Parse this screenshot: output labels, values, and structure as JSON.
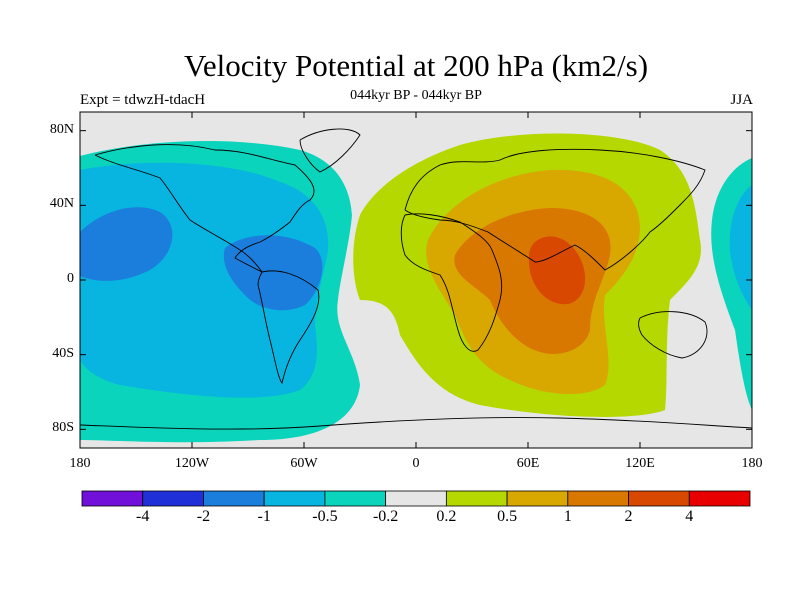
{
  "header": {
    "title": "Velocity Potential at 200 hPa (km2/s)",
    "experiment": "Expt = tdwzH-tdacH",
    "period": "044kyr BP - 044kyr BP",
    "season": "JJA"
  },
  "axes": {
    "lat_labels": [
      {
        "text": "80N",
        "value": 80
      },
      {
        "text": "40N",
        "value": 40
      },
      {
        "text": "0",
        "value": 0
      },
      {
        "text": "40S",
        "value": -40
      },
      {
        "text": "80S",
        "value": -80
      }
    ],
    "lon_labels": [
      {
        "text": "180",
        "value": -180
      },
      {
        "text": "120W",
        "value": -120
      },
      {
        "text": "60W",
        "value": -60
      },
      {
        "text": "0",
        "value": 0
      },
      {
        "text": "60E",
        "value": 60
      },
      {
        "text": "120E",
        "value": 120
      },
      {
        "text": "180",
        "value": 180
      }
    ]
  },
  "colorbar": {
    "colors": [
      "#7010d8",
      "#2030d8",
      "#1c7edc",
      "#08b4e0",
      "#0ad4bc",
      "#e6e6e6",
      "#b4d800",
      "#d8a800",
      "#d87800",
      "#d84800",
      "#e80000"
    ],
    "labels": [
      "-4",
      "-2",
      "-1",
      "-0.5",
      "-0.2",
      "0.2",
      "0.5",
      "1",
      "2",
      "4"
    ]
  },
  "field": {
    "background_level": "0",
    "regions": [
      {
        "level": "-0.2",
        "desc": "western hemisphere negative lobe"
      },
      {
        "level": "-0.5",
        "desc": "Pacific / Americas"
      },
      {
        "level": "-1",
        "desc": "central Pacific and Caribbean cores"
      },
      {
        "level": "0.2",
        "desc": "eastern hemisphere positive lobe"
      },
      {
        "level": "0.5",
        "desc": "Africa-Asia"
      },
      {
        "level": "1",
        "desc": "Africa / Indian Ocean"
      },
      {
        "level": "2",
        "desc": "Indian core"
      }
    ]
  }
}
